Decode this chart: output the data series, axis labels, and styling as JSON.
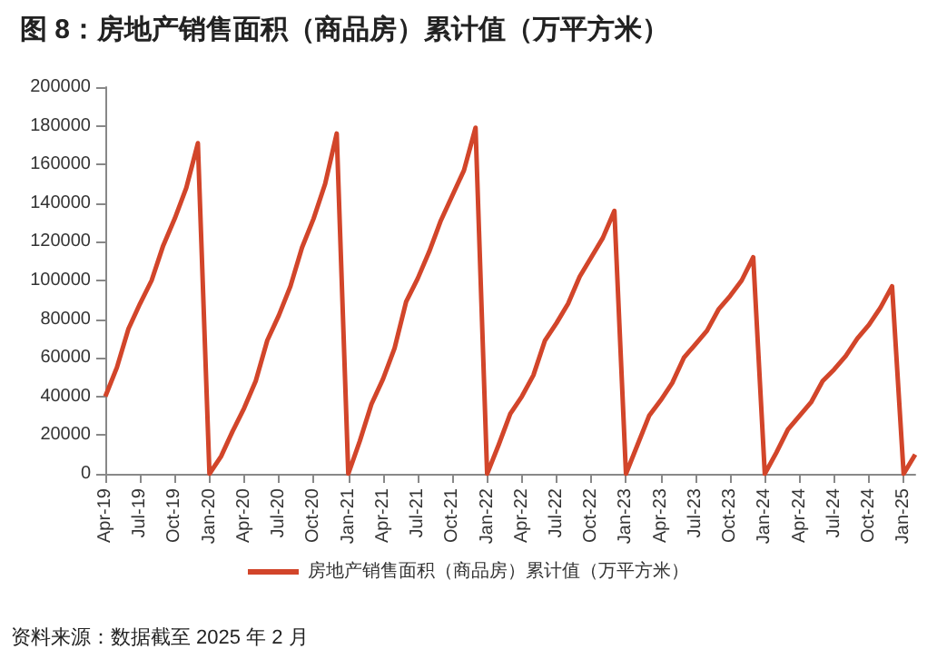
{
  "chart_data": {
    "type": "line",
    "title": "图 8：房地产销售面积（商品房）累计值（万平方米）",
    "categories": [
      "Apr-19",
      null,
      null,
      "Jul-19",
      null,
      null,
      "Oct-19",
      null,
      null,
      "Jan-20",
      null,
      null,
      "Apr-20",
      null,
      null,
      "Jul-20",
      null,
      null,
      "Oct-20",
      null,
      null,
      "Jan-21",
      null,
      null,
      "Apr-21",
      null,
      null,
      "Jul-21",
      null,
      null,
      "Oct-21",
      null,
      null,
      "Jan-22",
      null,
      null,
      "Apr-22",
      null,
      null,
      "Jul-22",
      null,
      null,
      "Oct-22",
      null,
      null,
      "Jan-23",
      null,
      null,
      "Apr-23",
      null,
      null,
      "Jul-23",
      null,
      null,
      "Oct-23",
      null,
      null,
      "Jan-24",
      null,
      null,
      "Apr-24",
      null,
      null,
      "Jul-24",
      null,
      null,
      "Oct-24",
      null,
      null,
      "Jan-25",
      null
    ],
    "series": [
      {
        "name": "房地产销售面积（商品房）累计值（万平方米）",
        "color": "#d2452a",
        "values": [
          40000,
          55000,
          75000,
          88000,
          100000,
          118000,
          132000,
          148000,
          171000,
          0,
          9000,
          22000,
          34000,
          48000,
          69000,
          82000,
          97000,
          117000,
          132000,
          150000,
          176000,
          0,
          17000,
          36000,
          49000,
          65000,
          89000,
          101000,
          115000,
          131000,
          144000,
          157000,
          179000,
          0,
          15000,
          31000,
          40000,
          51000,
          69000,
          78000,
          88000,
          102000,
          112000,
          122000,
          136000,
          0,
          15000,
          30000,
          38000,
          47000,
          60000,
          67000,
          74000,
          85000,
          92000,
          100000,
          112000,
          0,
          11000,
          23000,
          30000,
          37000,
          48000,
          54000,
          61000,
          70000,
          77000,
          86000,
          97000,
          0,
          10000
        ]
      }
    ],
    "ylim": [
      0,
      200000
    ],
    "yticks": [
      0,
      20000,
      40000,
      60000,
      80000,
      100000,
      120000,
      140000,
      160000,
      180000,
      200000
    ],
    "grid": false,
    "legend": "bottom",
    "marker": "none",
    "line_style": "solid",
    "annotations": [
      "资料来源：数据截至 2025 年 2 月"
    ]
  }
}
